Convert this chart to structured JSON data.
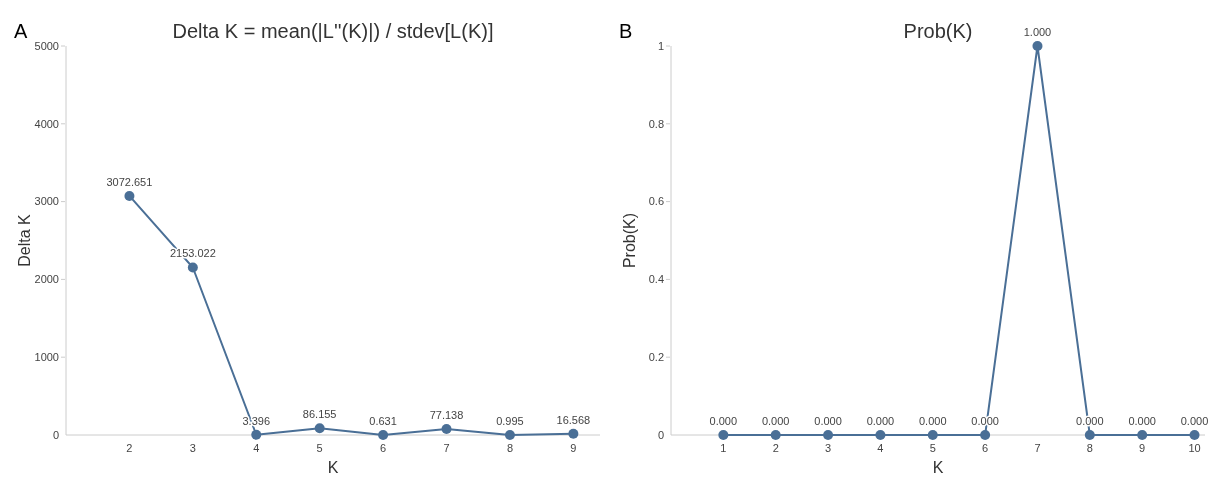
{
  "chart_data": [
    {
      "type": "line",
      "title": "Delta K = mean(|L''(K)|) / stdev[L(K)]",
      "xlabel": "K",
      "ylabel": "Delta K",
      "annotations": [
        "A"
      ],
      "x": [
        2,
        3,
        4,
        5,
        6,
        7,
        8,
        9
      ],
      "series": [
        {
          "color": "#4a6f96",
          "values": [
            3072.651,
            2153.022,
            3.396,
            86.155,
            0.631,
            77.138,
            0.995,
            16.568
          ],
          "value_labels": [
            "3072.651",
            "2153.022",
            "3.396",
            "86.155",
            "0.631",
            "77.138",
            "0.995",
            "16.568"
          ]
        }
      ],
      "xlim": [
        1,
        9.42
      ],
      "xticks": [
        2,
        3,
        4,
        5,
        6,
        7,
        8,
        9
      ],
      "ylim": [
        0,
        5000
      ],
      "yticks": [
        0,
        1000,
        2000,
        3000,
        4000,
        5000
      ],
      "grid": false,
      "marker": "circle",
      "line_style": "solid"
    },
    {
      "type": "line",
      "title": "Prob(K)",
      "xlabel": "K",
      "ylabel": "Prob(K)",
      "annotations": [
        "B"
      ],
      "x": [
        1,
        2,
        3,
        4,
        5,
        6,
        7,
        8,
        9,
        10
      ],
      "series": [
        {
          "color": "#4a6f96",
          "values": [
            0,
            0,
            0,
            0,
            0,
            0,
            1,
            0,
            0,
            0
          ],
          "value_labels": [
            "0.000",
            "0.000",
            "0.000",
            "0.000",
            "0.000",
            "0.000",
            "1.000",
            "0.000",
            "0.000",
            "0.000"
          ]
        }
      ],
      "xlim": [
        0,
        10.2
      ],
      "xticks": [
        1,
        2,
        3,
        4,
        5,
        6,
        7,
        8,
        9,
        10
      ],
      "ylim": [
        0,
        1
      ],
      "yticks": [
        0,
        0.2,
        0.4,
        0.6,
        0.8,
        1
      ],
      "grid": false,
      "marker": "circle",
      "line_style": "solid"
    }
  ]
}
